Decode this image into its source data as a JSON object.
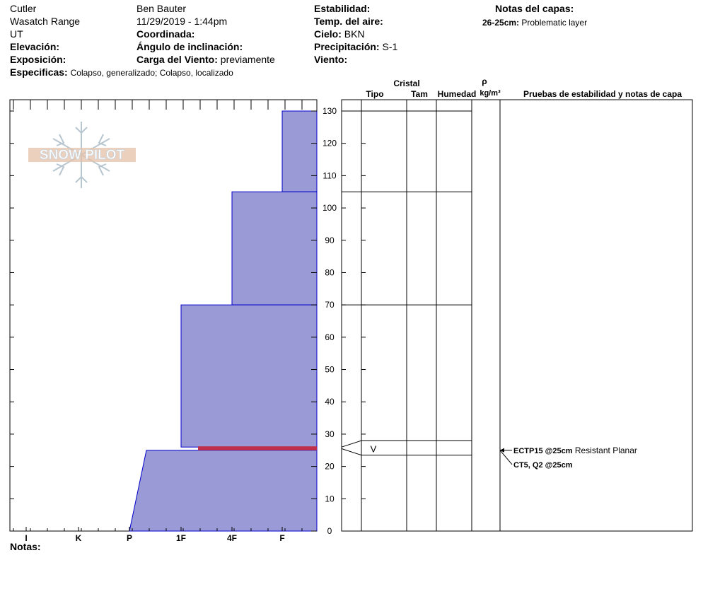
{
  "header": {
    "location": "Cutler",
    "range": "Wasatch Range",
    "state": "UT",
    "elevation_label": "Elevación:",
    "elevation_value": "",
    "exposure_label": "Exposición:",
    "exposure_value": "",
    "specifics_label": "Especificas:",
    "specifics_value": "Colapso, generalizado; Colapso, localizado",
    "observer": "Ben Bauter",
    "datetime": "11/29/2019 - 1:44pm",
    "coord_label": "Coordinada:",
    "coord_value": "",
    "slope_label": "Ángulo de inclinación:",
    "slope_value": "",
    "wind_load_label": "Carga del Viento:",
    "wind_load_value": "previamente",
    "stability_label": "Estabilidad:",
    "stability_value": "",
    "air_temp_label": "Temp. del aire:",
    "air_temp_value": "",
    "sky_label": "Cielo:",
    "sky_value": "BKN",
    "precip_label": "Precipitación:",
    "precip_value": "S-1",
    "wind_label": "Viento:",
    "wind_value": "",
    "layer_notes_title": "Notas del capas:",
    "layer_note_depth": "26-25cm:",
    "layer_note_text": "Problematic layer"
  },
  "logo_text": "SNOW PILOT",
  "notes_label": "Notas:",
  "columns": {
    "crystal": "Cristal",
    "type": "Tipo",
    "size": "Tam",
    "moisture": "Humedad",
    "rho": "ρ",
    "density_unit": "kg/m³",
    "tests": "Pruebas de estabilidad y notas de capa"
  },
  "colors": {
    "hardness_fill": "#9a9ad6",
    "hardness_edge": "#0000cc",
    "weak_layer": "#c0304a"
  },
  "chart_data": {
    "type": "area",
    "x_axis_labels": [
      "I",
      "K",
      "P",
      "1F",
      "4F",
      "F"
    ],
    "y_axis": {
      "min": 0,
      "max": 130,
      "ticks": [
        0,
        10,
        20,
        30,
        40,
        50,
        60,
        70,
        80,
        90,
        100,
        110,
        120,
        130
      ],
      "unit": "cm"
    },
    "hardness_profile": [
      {
        "bottom": 105,
        "top": 130,
        "hardness": "F"
      },
      {
        "bottom": 70,
        "top": 105,
        "hardness": "4F"
      },
      {
        "bottom": 26,
        "top": 70,
        "hardness": "1F"
      },
      {
        "bottom": 25,
        "top": 26,
        "hardness": "F"
      },
      {
        "bottom": 0,
        "top": 25,
        "hardness": "P-1F"
      }
    ],
    "weak_layer": {
      "bottom": 25,
      "top": 26
    },
    "layer_boundaries": [
      130,
      105,
      70,
      28,
      23.5
    ],
    "grain_symbol": {
      "text": "V",
      "depth": 25.5
    },
    "stability_tests": [
      {
        "bold": "ECTP15 @25cm",
        "text": "Resistant Planar",
        "depth": 25
      },
      {
        "bold": "CT5, Q2 @25cm",
        "text": "",
        "depth": 25
      }
    ]
  }
}
